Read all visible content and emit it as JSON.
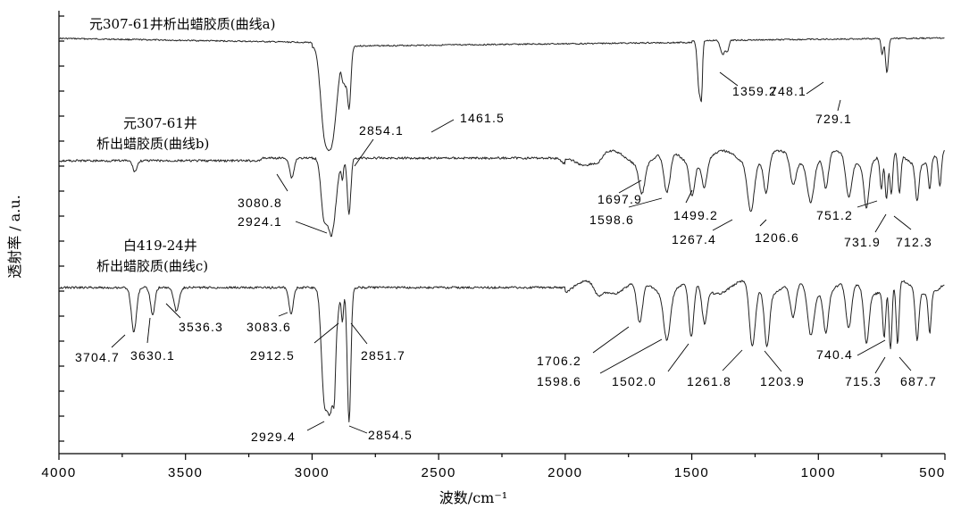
{
  "chart_data": {
    "type": "line",
    "xlabel": "波数/cm⁻¹",
    "ylabel": "透射率 / a.u.",
    "xlim": [
      4000,
      500
    ],
    "x_reversed": true,
    "x_ticks": [
      {
        "value": 4000,
        "label": "4000"
      },
      {
        "value": 3500,
        "label": "3500"
      },
      {
        "value": 3000,
        "label": "3000"
      },
      {
        "value": 2500,
        "label": "2500"
      },
      {
        "value": 2000,
        "label": "2000"
      },
      {
        "value": 1500,
        "label": "1500"
      },
      {
        "value": 1000,
        "label": "1000"
      },
      {
        "value": 500,
        "label": "500"
      }
    ],
    "series": [
      {
        "name": "元307-61井析出蜡胶质(曲线a)",
        "peaks": [
          {
            "x": 2854.1,
            "label": "2854.1"
          },
          {
            "x": 1461.5,
            "label": "1461.5"
          },
          {
            "x": 1359.2,
            "label": "1359.2"
          },
          {
            "x": 748.1,
            "label": "748.1"
          },
          {
            "x": 729.1,
            "label": "729.1"
          }
        ]
      },
      {
        "name": "元307-61井 析出蜡胶质(曲线b)",
        "peaks": [
          {
            "x": 3080.8,
            "label": "3080.8"
          },
          {
            "x": 2924.1,
            "label": "2924.1"
          },
          {
            "x": 1697.9,
            "label": "1697.9"
          },
          {
            "x": 1598.6,
            "label": "1598.6"
          },
          {
            "x": 1499.2,
            "label": "1499.2"
          },
          {
            "x": 1267.4,
            "label": "1267.4"
          },
          {
            "x": 1206.6,
            "label": "1206.6"
          },
          {
            "x": 751.2,
            "label": "751.2"
          },
          {
            "x": 731.9,
            "label": "731.9"
          },
          {
            "x": 712.3,
            "label": "712.3"
          }
        ]
      },
      {
        "name": "白419-24井 析出蜡胶质(曲线c)",
        "peaks": [
          {
            "x": 3704.7,
            "label": "3704.7"
          },
          {
            "x": 3630.1,
            "label": "3630.1"
          },
          {
            "x": 3536.3,
            "label": "3536.3"
          },
          {
            "x": 3083.6,
            "label": "3083.6"
          },
          {
            "x": 2912.5,
            "label": "2912.5"
          },
          {
            "x": 2851.7,
            "label": "2851.7"
          },
          {
            "x": 2929.4,
            "label": "2929.4"
          },
          {
            "x": 2854.5,
            "label": "2854.5"
          },
          {
            "x": 1706.2,
            "label": "1706.2"
          },
          {
            "x": 1598.6,
            "label": "1598.6"
          },
          {
            "x": 1502.0,
            "label": "1502.0"
          },
          {
            "x": 1261.8,
            "label": "1261.8"
          },
          {
            "x": 1203.9,
            "label": "1203.9"
          },
          {
            "x": 740.4,
            "label": "740.4"
          },
          {
            "x": 715.3,
            "label": "715.3"
          },
          {
            "x": 687.7,
            "label": "687.7"
          }
        ]
      }
    ],
    "curve_labels": {
      "a": "元307-61井析出蜡胶质(曲线a)",
      "b_line1": "元307-61井",
      "b_line2": "析出蜡胶质(曲线b)",
      "c_line1": "白419-24井",
      "c_line2": "析出蜡胶质(曲线c)"
    },
    "grid": false,
    "legend": "none"
  }
}
